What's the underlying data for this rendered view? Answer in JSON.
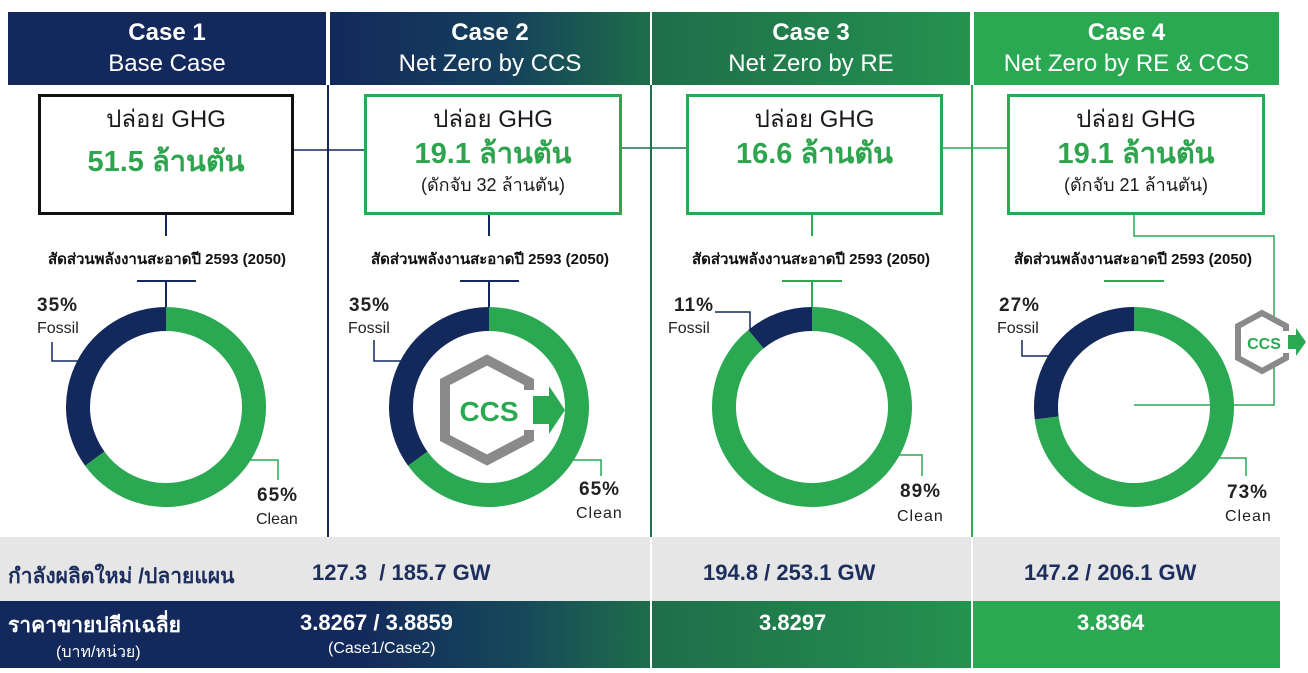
{
  "colors": {
    "navy": "#13295c",
    "green": "#2aa952",
    "dark_green": "#1e6e4a",
    "gray_row": "#e6e6e6"
  },
  "chart_data": {
    "type": "pie",
    "cases": [
      {
        "title": "Case 1",
        "subtitle": "Base Case",
        "ghg_label": "ปล่อย GHG",
        "ghg_value": "51.5 ล้านตัน",
        "capture": "",
        "share_title": "สัดส่วนพลังงานสะอาดปี 2593 (2050)",
        "fossil_pct": 35,
        "fossil_label": "35%",
        "fossil_name": "Fossil",
        "clean_pct": 65,
        "clean_label": "65%",
        "clean_name": "Clean",
        "capacity": "127.3  / 185.7 GW",
        "price": "3.8267 / 3.8859",
        "price_note": "(Case1/Case2)",
        "ccs": ""
      },
      {
        "title": "Case 2",
        "subtitle": "Net Zero by CCS",
        "ghg_label": "ปล่อย GHG",
        "ghg_value": "19.1 ล้านตัน",
        "capture": "(ดักจับ 32 ล้านตัน)",
        "share_title": "สัดส่วนพลังงานสะอาดปี 2593 (2050)",
        "fossil_pct": 35,
        "fossil_label": "35%",
        "fossil_name": "Fossil",
        "clean_pct": 65,
        "clean_label": "65%",
        "clean_name": "Clean",
        "capacity": "",
        "price": "",
        "price_note": "",
        "ccs": "CCS"
      },
      {
        "title": "Case 3",
        "subtitle": "Net Zero by RE",
        "ghg_label": "ปล่อย GHG",
        "ghg_value": "16.6 ล้านตัน",
        "capture": "",
        "share_title": "สัดส่วนพลังงานสะอาดปี 2593 (2050)",
        "fossil_pct": 11,
        "fossil_label": "11%",
        "fossil_name": "Fossil",
        "clean_pct": 89,
        "clean_label": "89%",
        "clean_name": "Clean",
        "capacity": "194.8 / 253.1 GW",
        "price": "3.8297",
        "price_note": "",
        "ccs": ""
      },
      {
        "title": "Case 4",
        "subtitle": "Net Zero by RE & CCS",
        "ghg_label": "ปล่อย GHG",
        "ghg_value": "19.1 ล้านตัน",
        "capture": "(ดักจับ 21 ล้านตัน)",
        "share_title": "สัดส่วนพลังงานสะอาดปี 2593 (2050)",
        "fossil_pct": 27,
        "fossil_label": "27%",
        "fossil_name": "Fossil",
        "clean_pct": 73,
        "clean_label": "73%",
        "clean_name": "Clean",
        "capacity": "147.2 / 206.1 GW",
        "price": "3.8364",
        "price_note": "",
        "ccs": "CCS"
      }
    ]
  },
  "rows": {
    "capacity_label": "กำลังผลิตใหม่ /ปลายแผน",
    "price_label": "ราคาขายปลีกเฉลี่ย",
    "price_unit": "(บาท/หน่วย)"
  }
}
